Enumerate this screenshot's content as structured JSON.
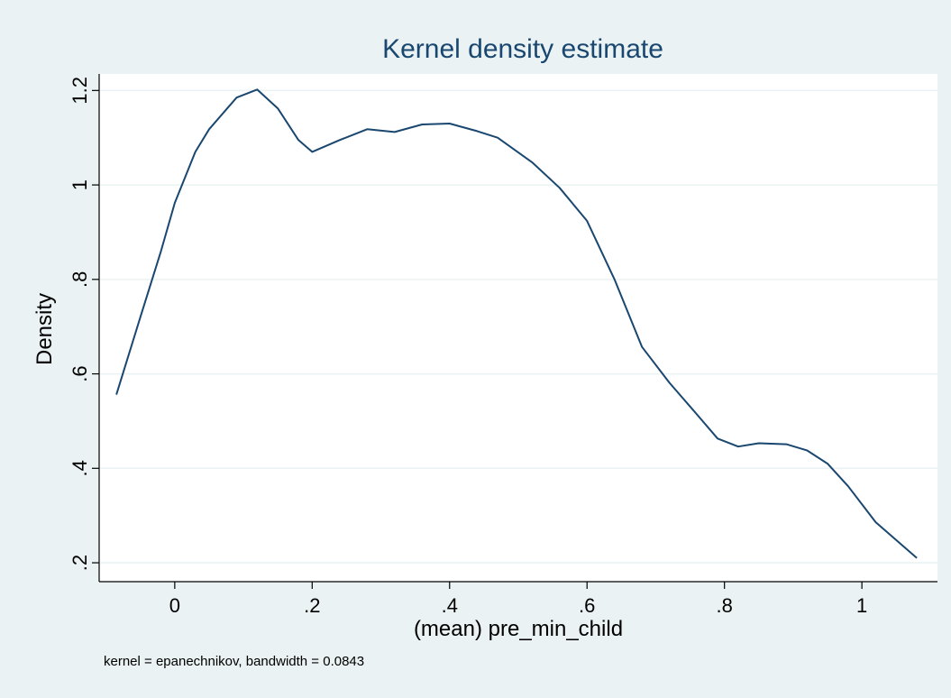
{
  "chart_data": {
    "type": "line",
    "title": "Kernel density estimate",
    "x_label": "(mean) pre_min_child",
    "y_label": "Density",
    "note": "kernel = epanechnikov, bandwidth = 0.0843",
    "color": "#1a476f",
    "grid": true,
    "xlim": [
      -0.11,
      1.11
    ],
    "ylim": [
      0.16,
      1.235
    ],
    "xticks": [
      0,
      {
        "value": 0.2,
        "label": ".2"
      },
      {
        "value": 0.4,
        "label": ".4"
      },
      {
        "value": 0.6,
        "label": ".6"
      },
      {
        "value": 0.8,
        "label": ".8"
      },
      1
    ],
    "yticks": [
      {
        "value": 0.2,
        "label": ".2"
      },
      {
        "value": 0.4,
        "label": ".4"
      },
      {
        "value": 0.6,
        "label": ".6"
      },
      {
        "value": 0.8,
        "label": ".8"
      },
      1,
      1.2
    ],
    "x": [
      -0.085,
      -0.05,
      -0.02,
      0,
      0.03,
      0.05,
      0.09,
      0.12,
      0.15,
      0.18,
      0.2,
      0.24,
      0.28,
      0.32,
      0.36,
      0.4,
      0.44,
      0.47,
      0.52,
      0.56,
      0.6,
      0.64,
      0.68,
      0.72,
      0.76,
      0.79,
      0.82,
      0.85,
      0.89,
      0.92,
      0.95,
      0.98,
      1.02,
      1.08
    ],
    "values": [
      0.556,
      0.72,
      0.86,
      0.962,
      1.07,
      1.118,
      1.185,
      1.202,
      1.162,
      1.095,
      1.07,
      1.095,
      1.118,
      1.112,
      1.128,
      1.13,
      1.114,
      1.1,
      1.048,
      0.994,
      0.924,
      0.8,
      0.657,
      0.581,
      0.514,
      0.463,
      0.446,
      0.453,
      0.451,
      0.438,
      0.41,
      0.362,
      0.286,
      0.21
    ]
  }
}
